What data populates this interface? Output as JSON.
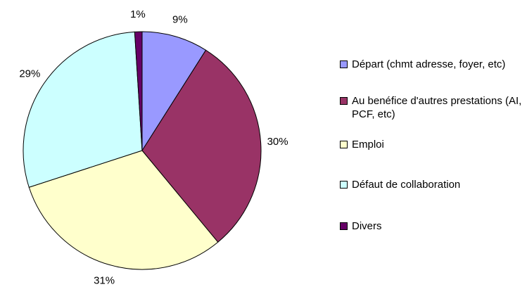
{
  "chart_data": {
    "type": "pie",
    "categories": [
      "Départ (chmt adresse, foyer, etc)",
      "Au benéfice d'autres prestations (AI, PCF, etc)",
      "Emploi",
      "Défaut de collaboration",
      "Divers"
    ],
    "values": [
      9,
      30,
      31,
      29,
      1
    ],
    "value_labels": [
      "9%",
      "30%",
      "31%",
      "29%",
      "1%"
    ],
    "colors": [
      "#9999ff",
      "#993366",
      "#ffffcc",
      "#ccffff",
      "#660066"
    ],
    "legend": "right"
  }
}
